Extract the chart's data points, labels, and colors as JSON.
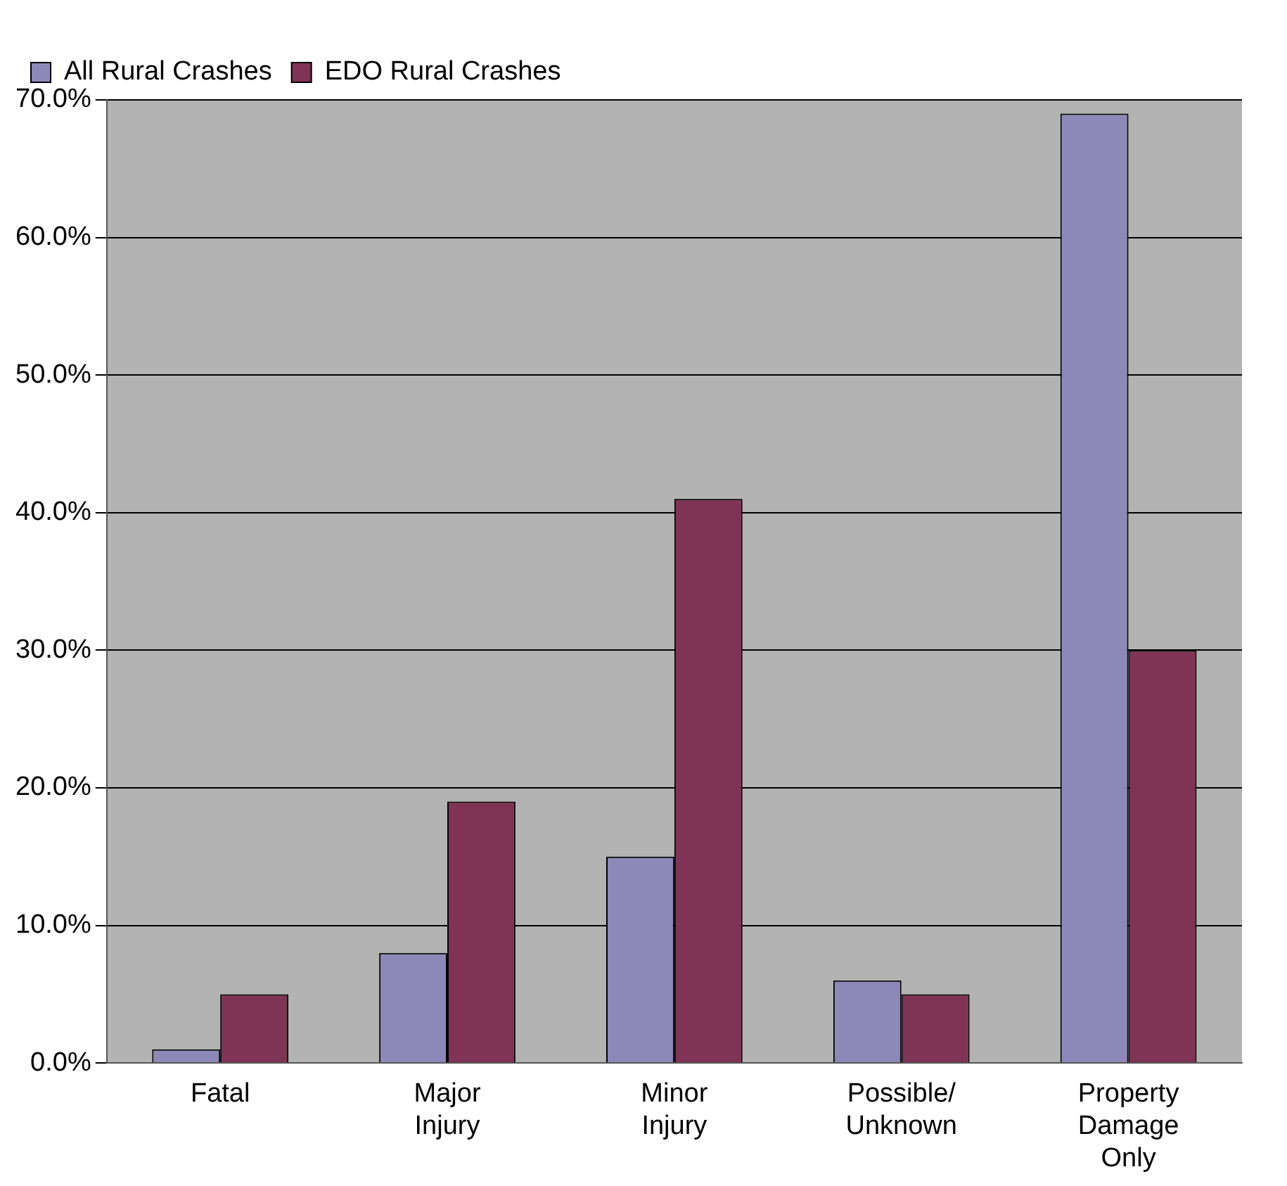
{
  "chart_data": {
    "type": "bar",
    "categories": [
      "Fatal",
      "Major Injury",
      "Minor Injury",
      "Possible/ Unknown",
      "Property Damage Only"
    ],
    "series": [
      {
        "name": "All Rural Crashes",
        "color": "#8e88b8",
        "values": [
          1.0,
          8.0,
          15.0,
          6.0,
          69.0
        ]
      },
      {
        "name": "EDO Rural Crashes",
        "color": "#7f3355",
        "values": [
          5.0,
          19.0,
          41.0,
          5.0,
          30.0
        ]
      }
    ],
    "ylim": [
      0,
      70
    ],
    "yticks": [
      {
        "value": 0,
        "label": "0.0%"
      },
      {
        "value": 10,
        "label": "10.0%"
      },
      {
        "value": 20,
        "label": "20.0%"
      },
      {
        "value": 30,
        "label": "30.0%"
      },
      {
        "value": 40,
        "label": "40.0%"
      },
      {
        "value": 50,
        "label": "50.0%"
      },
      {
        "value": 60,
        "label": "60.0%"
      },
      {
        "value": 70,
        "label": "70.0%"
      }
    ],
    "grid": "y",
    "legend": "top left"
  }
}
